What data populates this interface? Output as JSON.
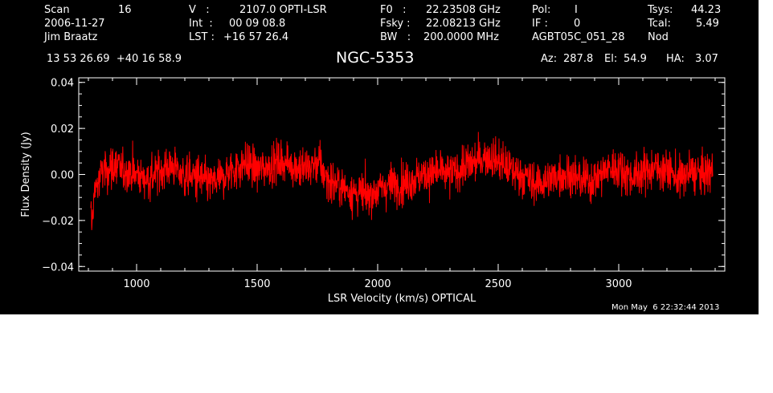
{
  "header": {
    "row1": {
      "scan_label": "Scan",
      "scan_value": "16",
      "v_label": "V   :",
      "v_value": "2107.0 OPTI-LSR",
      "f0_label": "F0   :",
      "f0_value": "22.23508 GHz",
      "pol_label": "Pol:",
      "pol_value": "I",
      "tsys_label": "Tsys:",
      "tsys_value": "44.23"
    },
    "row2": {
      "date": "2006-11-27",
      "int_label": "Int  :",
      "int_value": "00 09 08.8",
      "fsky_label": "Fsky :",
      "fsky_value": "22.08213 GHz",
      "if_label": "IF :",
      "if_value": "0",
      "tcal_label": "Tcal:",
      "tcal_value": "5.49"
    },
    "row3": {
      "observer": "Jim Braatz",
      "lst_label": "LST :",
      "lst_value": "+16 57 26.4",
      "bw_label": "BW   :",
      "bw_value": "200.0000 MHz",
      "project": "AGBT05C_051_28",
      "mode": "Nod"
    },
    "row4": {
      "coords": "13 53 26.69  +40 16 58.9",
      "source": "NGC-5353",
      "az_label": "Az:",
      "az_value": "287.8",
      "el_label": "El:",
      "el_value": "54.9",
      "ha_label": "HA:",
      "ha_value": "3.07"
    },
    "timestamp": "Mon May  6 22:32:44 2013"
  },
  "colors": {
    "background": "#000000",
    "axes": "#ffffff",
    "trace": "#ff0000"
  },
  "chart_data": {
    "type": "line",
    "title": "NGC-5353",
    "xlabel": "LSR Velocity (km/s) OPTICAL",
    "ylabel": "Flux Density (Jy)",
    "xlim": [
      760,
      3440
    ],
    "ylim": [
      -0.042,
      0.042
    ],
    "x_ticks": [
      1000,
      1500,
      2000,
      2500,
      3000
    ],
    "x_tick_labels": [
      "1000",
      "1500",
      "2000",
      "2500",
      "3000"
    ],
    "y_ticks": [
      -0.04,
      -0.02,
      0.0,
      0.02,
      0.04
    ],
    "y_tick_labels": [
      "−0.04",
      "−0.02",
      "0.00",
      "0.02",
      "0.04"
    ],
    "grid": false,
    "series": [
      {
        "color": "#ff0000",
        "noise_rms": 0.0045,
        "x": [
          810,
          830,
          860,
          900,
          950,
          1000,
          1050,
          1100,
          1150,
          1200,
          1250,
          1300,
          1350,
          1400,
          1450,
          1500,
          1550,
          1600,
          1650,
          1700,
          1750,
          1800,
          1850,
          1900,
          1950,
          2000,
          2050,
          2100,
          2150,
          2200,
          2250,
          2300,
          2350,
          2400,
          2450,
          2500,
          2550,
          2600,
          2650,
          2700,
          2750,
          2800,
          2850,
          2900,
          2950,
          3000,
          3050,
          3100,
          3150,
          3200,
          3250,
          3300,
          3350,
          3390
        ],
        "y": [
          -0.018,
          -0.006,
          0.002,
          0.003,
          0.002,
          0.0,
          -0.002,
          0.002,
          0.004,
          -0.001,
          -0.001,
          -0.004,
          -0.002,
          0.002,
          0.005,
          0.002,
          0.004,
          0.006,
          0.004,
          0.002,
          0.005,
          -0.003,
          -0.005,
          -0.008,
          -0.009,
          -0.007,
          -0.004,
          -0.004,
          -0.002,
          0.0,
          0.001,
          0.0,
          0.003,
          0.005,
          0.008,
          0.006,
          0.002,
          0.0,
          -0.004,
          -0.003,
          0.0,
          0.0,
          -0.003,
          -0.002,
          0.002,
          0.003,
          -0.001,
          0.001,
          0.003,
          0.002,
          -0.002,
          0.001,
          0.0,
          0.002
        ]
      }
    ]
  }
}
